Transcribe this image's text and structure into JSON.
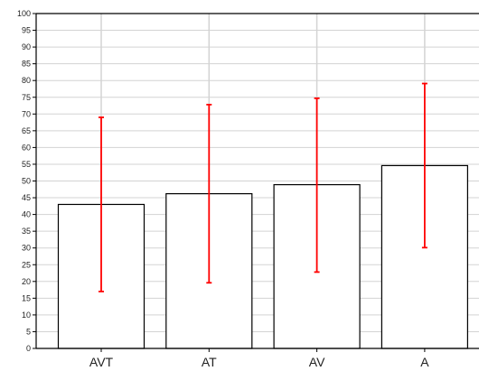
{
  "chart_data": {
    "type": "bar",
    "title": "",
    "xlabel": "",
    "ylabel": "",
    "categories": [
      "AVT",
      "AT",
      "AV",
      "A"
    ],
    "values": [
      43,
      46.2,
      48.9,
      54.6
    ],
    "error_low": [
      17,
      19.6,
      22.8,
      30.1
    ],
    "error_high": [
      69,
      72.8,
      74.7,
      79.1
    ],
    "ylim": [
      0,
      100
    ],
    "yticks": [
      0,
      5,
      10,
      15,
      20,
      25,
      30,
      35,
      40,
      45,
      50,
      55,
      60,
      65,
      70,
      75,
      80,
      85,
      90,
      95,
      100
    ],
    "grid": true,
    "colors": {
      "bar_fill": "#ffffff",
      "bar_edge": "#000000",
      "error_bar": "#ff0000",
      "grid": "#d3d3d3",
      "axis": "#000000"
    }
  }
}
